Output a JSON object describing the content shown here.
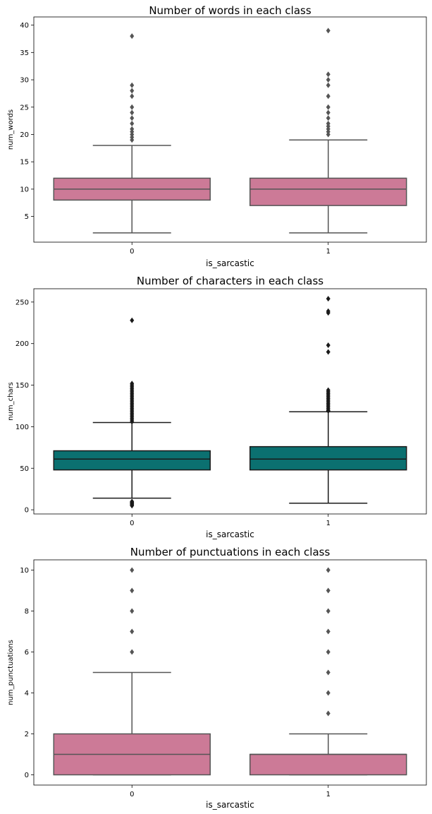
{
  "chart_data": [
    {
      "type": "box",
      "title": "Number of words in each class",
      "xlabel": "is_sarcastic",
      "ylabel": "num_words",
      "categories": [
        "0",
        "1"
      ],
      "ylim": [
        0.3,
        41.5
      ],
      "yticks": [
        5,
        10,
        15,
        20,
        25,
        30,
        35,
        40
      ],
      "box_color": "#cc7a97",
      "line_color": "#555555",
      "boxes": [
        {
          "category": "0",
          "whislo": 2,
          "q1": 8,
          "median": 10,
          "q3": 12,
          "whishi": 18,
          "fliers": [
            19,
            19.5,
            20,
            20.5,
            21,
            22,
            23,
            24,
            25,
            27,
            28,
            29,
            38
          ]
        },
        {
          "category": "1",
          "whislo": 2,
          "q1": 7,
          "median": 10,
          "q3": 12,
          "whishi": 19,
          "fliers": [
            20,
            20.5,
            21,
            21.5,
            22,
            23,
            24,
            25,
            27,
            29,
            30,
            31,
            39
          ]
        }
      ]
    },
    {
      "type": "box",
      "title": "Number of characters in each class",
      "xlabel": "is_sarcastic",
      "ylabel": "num_chars",
      "categories": [
        "0",
        "1"
      ],
      "ylim": [
        -5,
        266
      ],
      "yticks": [
        0,
        50,
        100,
        150,
        200,
        250
      ],
      "box_color": "#0b7070",
      "line_color": "#1a1a1a",
      "boxes": [
        {
          "category": "0",
          "whislo": 14,
          "q1": 48,
          "median": 61,
          "q3": 71,
          "whishi": 105,
          "fliers": [
            5,
            6,
            7,
            8,
            9,
            10,
            106,
            108,
            110,
            112,
            114,
            116,
            118,
            120,
            122,
            124,
            126,
            128,
            130,
            132,
            134,
            136,
            138,
            140,
            142,
            144,
            146,
            148,
            150,
            152,
            228
          ]
        },
        {
          "category": "1",
          "whislo": 8,
          "q1": 48,
          "median": 61,
          "q3": 76,
          "whishi": 118,
          "fliers": [
            119,
            120,
            122,
            124,
            126,
            128,
            130,
            132,
            134,
            136,
            138,
            140,
            142,
            144,
            190,
            198,
            237,
            239,
            254
          ]
        }
      ]
    },
    {
      "type": "box",
      "title": "Number of punctuations in each class",
      "xlabel": "is_sarcastic",
      "ylabel": "num_punctuations",
      "categories": [
        "0",
        "1"
      ],
      "ylim": [
        -0.5,
        10.5
      ],
      "yticks": [
        0,
        2,
        4,
        6,
        8,
        10
      ],
      "box_color": "#cc7a97",
      "line_color": "#555555",
      "boxes": [
        {
          "category": "0",
          "whislo": 0,
          "q1": 0,
          "median": 1,
          "q3": 2,
          "whishi": 5,
          "fliers": [
            6,
            7,
            8,
            9,
            10
          ]
        },
        {
          "category": "1",
          "whislo": 0,
          "q1": 0,
          "median": 1,
          "q3": 1,
          "whishi": 2,
          "fliers": [
            3,
            4,
            5,
            6,
            7,
            8,
            9,
            10
          ]
        }
      ]
    }
  ]
}
